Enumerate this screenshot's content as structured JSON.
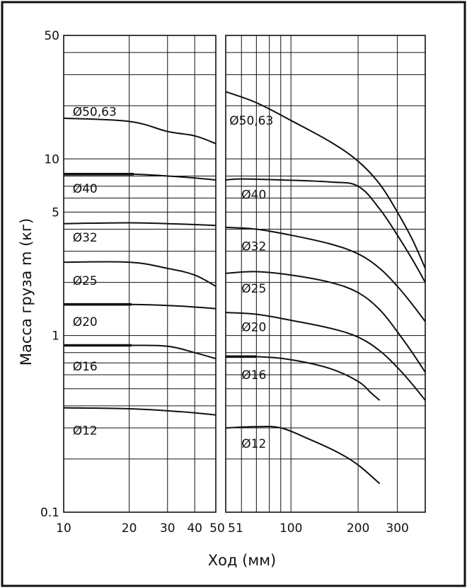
{
  "chart_data": {
    "type": "line",
    "title": "",
    "xlabel": "Ход (мм)",
    "ylabel": "Масса груза m (кг)",
    "y_scale": "log",
    "ylim": [
      0.1,
      50
    ],
    "y_ticks": [
      {
        "value": 0.1,
        "label": "0.1"
      },
      {
        "value": 1,
        "label": "1"
      },
      {
        "value": 5,
        "label": "5"
      },
      {
        "value": 10,
        "label": "10"
      },
      {
        "value": 50,
        "label": "50"
      }
    ],
    "y_minor_gridlines": [
      0.2,
      0.3,
      0.4,
      0.5,
      0.6,
      0.7,
      0.8,
      2,
      3,
      4,
      6,
      7,
      8,
      20,
      30,
      40
    ],
    "grid": true,
    "panels": [
      {
        "id": "left",
        "x_scale": "log",
        "xlim": [
          10,
          50
        ],
        "x_ticks": [
          {
            "value": 10,
            "label": "10"
          },
          {
            "value": 20,
            "label": "20"
          },
          {
            "value": 30,
            "label": "30"
          },
          {
            "value": 40,
            "label": "40"
          },
          {
            "value": 50,
            "label": "50"
          }
        ],
        "x_gridlines": [
          20,
          30,
          40
        ]
      },
      {
        "id": "right",
        "x_scale": "log",
        "xlim": [
          51,
          400
        ],
        "x_ticks": [
          {
            "value": 51,
            "label": "51"
          },
          {
            "value": 100,
            "label": "100"
          },
          {
            "value": 200,
            "label": "200"
          },
          {
            "value": 300,
            "label": "300"
          }
        ],
        "x_gridlines": [
          60,
          70,
          80,
          90,
          100,
          200,
          300
        ]
      }
    ],
    "series": [
      {
        "name": "Ø50,63",
        "label_at": [
          {
            "panel": "left",
            "x": 11,
            "y": 18.5
          },
          {
            "panel": "right",
            "x": 53,
            "y": 16.5
          }
        ],
        "segments": [
          {
            "panel": "left",
            "points": [
              [
                10,
                17
              ],
              [
                20,
                16.3
              ],
              [
                30,
                14.3
              ],
              [
                40,
                13.5
              ],
              [
                50,
                12.2
              ]
            ]
          },
          {
            "panel": "right",
            "points": [
              [
                51,
                24
              ],
              [
                70,
                20.8
              ],
              [
                100,
                16.5
              ],
              [
                150,
                12.5
              ],
              [
                200,
                9.7
              ],
              [
                250,
                7.2
              ],
              [
                300,
                5
              ],
              [
                350,
                3.5
              ],
              [
                400,
                2.4
              ]
            ]
          }
        ]
      },
      {
        "name": "Ø40",
        "label_at": [
          {
            "panel": "left",
            "x": 11,
            "y": 6.8
          },
          {
            "panel": "right",
            "x": 60,
            "y": 6.3
          }
        ],
        "thick_until": {
          "left": 21
        },
        "segments": [
          {
            "panel": "left",
            "points": [
              [
                10,
                8.2
              ],
              [
                20,
                8.2
              ],
              [
                30,
                8
              ],
              [
                40,
                7.8
              ],
              [
                50,
                7.6
              ]
            ]
          },
          {
            "panel": "right",
            "points": [
              [
                51,
                7.6
              ],
              [
                60,
                7.7
              ],
              [
                90,
                7.6
              ],
              [
                150,
                7.4
              ],
              [
                200,
                7
              ],
              [
                250,
                5.2
              ],
              [
                300,
                3.7
              ],
              [
                350,
                2.7
              ],
              [
                400,
                2
              ]
            ]
          }
        ]
      },
      {
        "name": "Ø32",
        "label_at": [
          {
            "panel": "left",
            "x": 11,
            "y": 3.6
          },
          {
            "panel": "right",
            "x": 60,
            "y": 3.2
          }
        ],
        "segments": [
          {
            "panel": "left",
            "points": [
              [
                10,
                4.3
              ],
              [
                20,
                4.35
              ],
              [
                30,
                4.3
              ],
              [
                40,
                4.25
              ],
              [
                50,
                4.2
              ]
            ]
          },
          {
            "panel": "right",
            "points": [
              [
                51,
                4.1
              ],
              [
                70,
                4
              ],
              [
                100,
                3.7
              ],
              [
                150,
                3.3
              ],
              [
                200,
                2.9
              ],
              [
                250,
                2.4
              ],
              [
                300,
                1.9
              ],
              [
                350,
                1.5
              ],
              [
                400,
                1.2
              ]
            ]
          }
        ]
      },
      {
        "name": "Ø25",
        "label_at": [
          {
            "panel": "left",
            "x": 11,
            "y": 2.05
          },
          {
            "panel": "right",
            "x": 60,
            "y": 1.85
          }
        ],
        "segments": [
          {
            "panel": "left",
            "points": [
              [
                10,
                2.6
              ],
              [
                20,
                2.6
              ],
              [
                30,
                2.4
              ],
              [
                40,
                2.2
              ],
              [
                50,
                1.9
              ]
            ]
          },
          {
            "panel": "right",
            "points": [
              [
                51,
                2.25
              ],
              [
                70,
                2.3
              ],
              [
                100,
                2.2
              ],
              [
                150,
                2
              ],
              [
                200,
                1.75
              ],
              [
                250,
                1.4
              ],
              [
                300,
                1.05
              ],
              [
                350,
                0.8
              ],
              [
                400,
                0.62
              ]
            ]
          }
        ]
      },
      {
        "name": "Ø20",
        "label_at": [
          {
            "panel": "left",
            "x": 11,
            "y": 1.2
          },
          {
            "panel": "right",
            "x": 60,
            "y": 1.12
          }
        ],
        "thick_until": {
          "left": 20.5
        },
        "segments": [
          {
            "panel": "left",
            "points": [
              [
                10,
                1.5
              ],
              [
                20,
                1.5
              ],
              [
                30,
                1.48
              ],
              [
                40,
                1.45
              ],
              [
                50,
                1.42
              ]
            ]
          },
          {
            "panel": "right",
            "points": [
              [
                51,
                1.35
              ],
              [
                70,
                1.32
              ],
              [
                100,
                1.22
              ],
              [
                150,
                1.1
              ],
              [
                200,
                0.98
              ],
              [
                250,
                0.82
              ],
              [
                300,
                0.66
              ],
              [
                350,
                0.53
              ],
              [
                400,
                0.43
              ]
            ]
          }
        ]
      },
      {
        "name": "Ø16",
        "label_at": [
          {
            "panel": "left",
            "x": 11,
            "y": 0.67
          },
          {
            "panel": "right",
            "x": 60,
            "y": 0.6
          }
        ],
        "thick_until": {
          "left": 20.5,
          "right": 70
        },
        "segments": [
          {
            "panel": "left",
            "points": [
              [
                10,
                0.88
              ],
              [
                20,
                0.88
              ],
              [
                30,
                0.87
              ],
              [
                40,
                0.8
              ],
              [
                50,
                0.74
              ]
            ]
          },
          {
            "panel": "right",
            "points": [
              [
                51,
                0.76
              ],
              [
                70,
                0.76
              ],
              [
                100,
                0.73
              ],
              [
                150,
                0.65
              ],
              [
                200,
                0.55
              ],
              [
                230,
                0.47
              ],
              [
                250,
                0.43
              ]
            ]
          }
        ]
      },
      {
        "name": "Ø12",
        "label_at": [
          {
            "panel": "left",
            "x": 11,
            "y": 0.29
          },
          {
            "panel": "right",
            "x": 60,
            "y": 0.245
          }
        ],
        "segments": [
          {
            "panel": "left",
            "points": [
              [
                10,
                0.39
              ],
              [
                20,
                0.385
              ],
              [
                30,
                0.375
              ],
              [
                40,
                0.365
              ],
              [
                50,
                0.355
              ]
            ]
          },
          {
            "panel": "right",
            "points": [
              [
                51,
                0.3
              ],
              [
                70,
                0.305
              ],
              [
                90,
                0.3
              ],
              [
                120,
                0.26
              ],
              [
                160,
                0.22
              ],
              [
                200,
                0.185
              ],
              [
                250,
                0.145
              ]
            ]
          }
        ]
      }
    ]
  }
}
